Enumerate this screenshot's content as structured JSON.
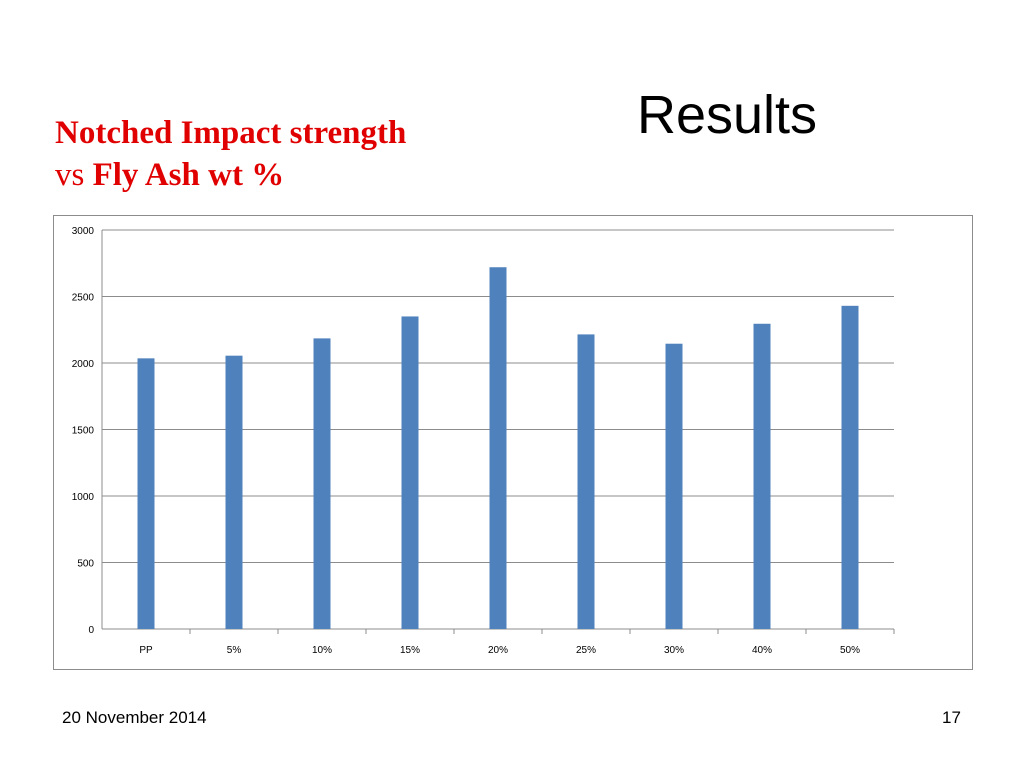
{
  "slide": {
    "title": "Results",
    "subtitle_part1": "Notched Impact strength",
    "subtitle_vs": "vs",
    "subtitle_part2": "Fly Ash wt %",
    "date": "20 November 2014",
    "page_number": "17"
  },
  "colors": {
    "subtitle": "#e00000",
    "bar": "#4f81bd",
    "gridline": "#8c8c8c"
  },
  "chart_data": {
    "type": "bar",
    "categories": [
      "PP",
      "5%",
      "10%",
      "15%",
      "20%",
      "25%",
      "30%",
      "40%",
      "50%"
    ],
    "values": [
      2035,
      2055,
      2185,
      2350,
      2720,
      2215,
      2145,
      2295,
      2430
    ],
    "yticks": [
      "0",
      "500",
      "1000",
      "1500",
      "2000",
      "2500",
      "3000"
    ],
    "ylim": [
      0,
      3000
    ],
    "grid": true,
    "legend": "none"
  }
}
